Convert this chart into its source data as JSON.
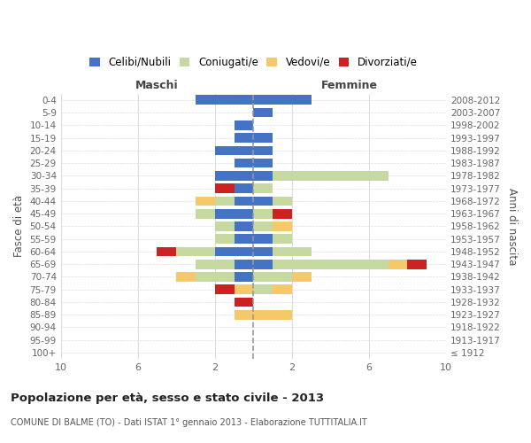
{
  "age_groups": [
    "100+",
    "95-99",
    "90-94",
    "85-89",
    "80-84",
    "75-79",
    "70-74",
    "65-69",
    "60-64",
    "55-59",
    "50-54",
    "45-49",
    "40-44",
    "35-39",
    "30-34",
    "25-29",
    "20-24",
    "15-19",
    "10-14",
    "5-9",
    "0-4"
  ],
  "birth_years": [
    "≤ 1912",
    "1913-1917",
    "1918-1922",
    "1923-1927",
    "1928-1932",
    "1933-1937",
    "1938-1942",
    "1943-1947",
    "1948-1952",
    "1953-1957",
    "1958-1962",
    "1963-1967",
    "1968-1972",
    "1973-1977",
    "1978-1982",
    "1983-1987",
    "1988-1992",
    "1993-1997",
    "1998-2002",
    "2003-2007",
    "2008-2012"
  ],
  "males_celibi": [
    0,
    0,
    0,
    0,
    0,
    0,
    1,
    1,
    2,
    1,
    1,
    2,
    1,
    1,
    2,
    1,
    2,
    1,
    1,
    0,
    3
  ],
  "males_coniugati": [
    0,
    0,
    0,
    0,
    0,
    0,
    2,
    2,
    2,
    1,
    1,
    1,
    1,
    0,
    0,
    0,
    0,
    0,
    0,
    0,
    0
  ],
  "males_vedovi": [
    0,
    0,
    0,
    1,
    0,
    1,
    1,
    0,
    0,
    0,
    0,
    0,
    1,
    0,
    0,
    0,
    0,
    0,
    0,
    0,
    0
  ],
  "males_divorziati": [
    0,
    0,
    0,
    0,
    1,
    1,
    0,
    0,
    1,
    0,
    0,
    0,
    0,
    1,
    0,
    0,
    0,
    0,
    0,
    0,
    0
  ],
  "females_nubili": [
    0,
    0,
    0,
    0,
    0,
    0,
    0,
    1,
    1,
    1,
    0,
    0,
    1,
    0,
    1,
    1,
    1,
    1,
    0,
    1,
    3
  ],
  "females_coniugate": [
    0,
    0,
    0,
    0,
    0,
    1,
    2,
    6,
    2,
    1,
    1,
    1,
    1,
    1,
    6,
    0,
    0,
    0,
    0,
    0,
    0
  ],
  "females_vedove": [
    0,
    0,
    0,
    2,
    0,
    1,
    1,
    1,
    0,
    0,
    1,
    0,
    0,
    0,
    0,
    0,
    0,
    0,
    0,
    0,
    0
  ],
  "females_divorziate": [
    0,
    0,
    0,
    0,
    0,
    0,
    0,
    1,
    0,
    0,
    0,
    1,
    0,
    0,
    0,
    0,
    0,
    0,
    0,
    0,
    0
  ],
  "color_celibi": "#4472C4",
  "color_coniugati": "#C5D9A0",
  "color_vedovi": "#F5C96A",
  "color_divorziati": "#CC2222",
  "xlim": 10,
  "title": "Popolazione per età, sesso e stato civile - 2013",
  "subtitle": "COMUNE DI BALME (TO) - Dati ISTAT 1° gennaio 2013 - Elaborazione TUTTITALIA.IT",
  "ylabel_left": "Fasce di età",
  "ylabel_right": "Anni di nascita",
  "label_maschi": "Maschi",
  "label_femmine": "Femmine",
  "legend_labels": [
    "Celibi/Nubili",
    "Coniugati/e",
    "Vedovi/e",
    "Divorziati/e"
  ],
  "bg_color": "#ffffff"
}
